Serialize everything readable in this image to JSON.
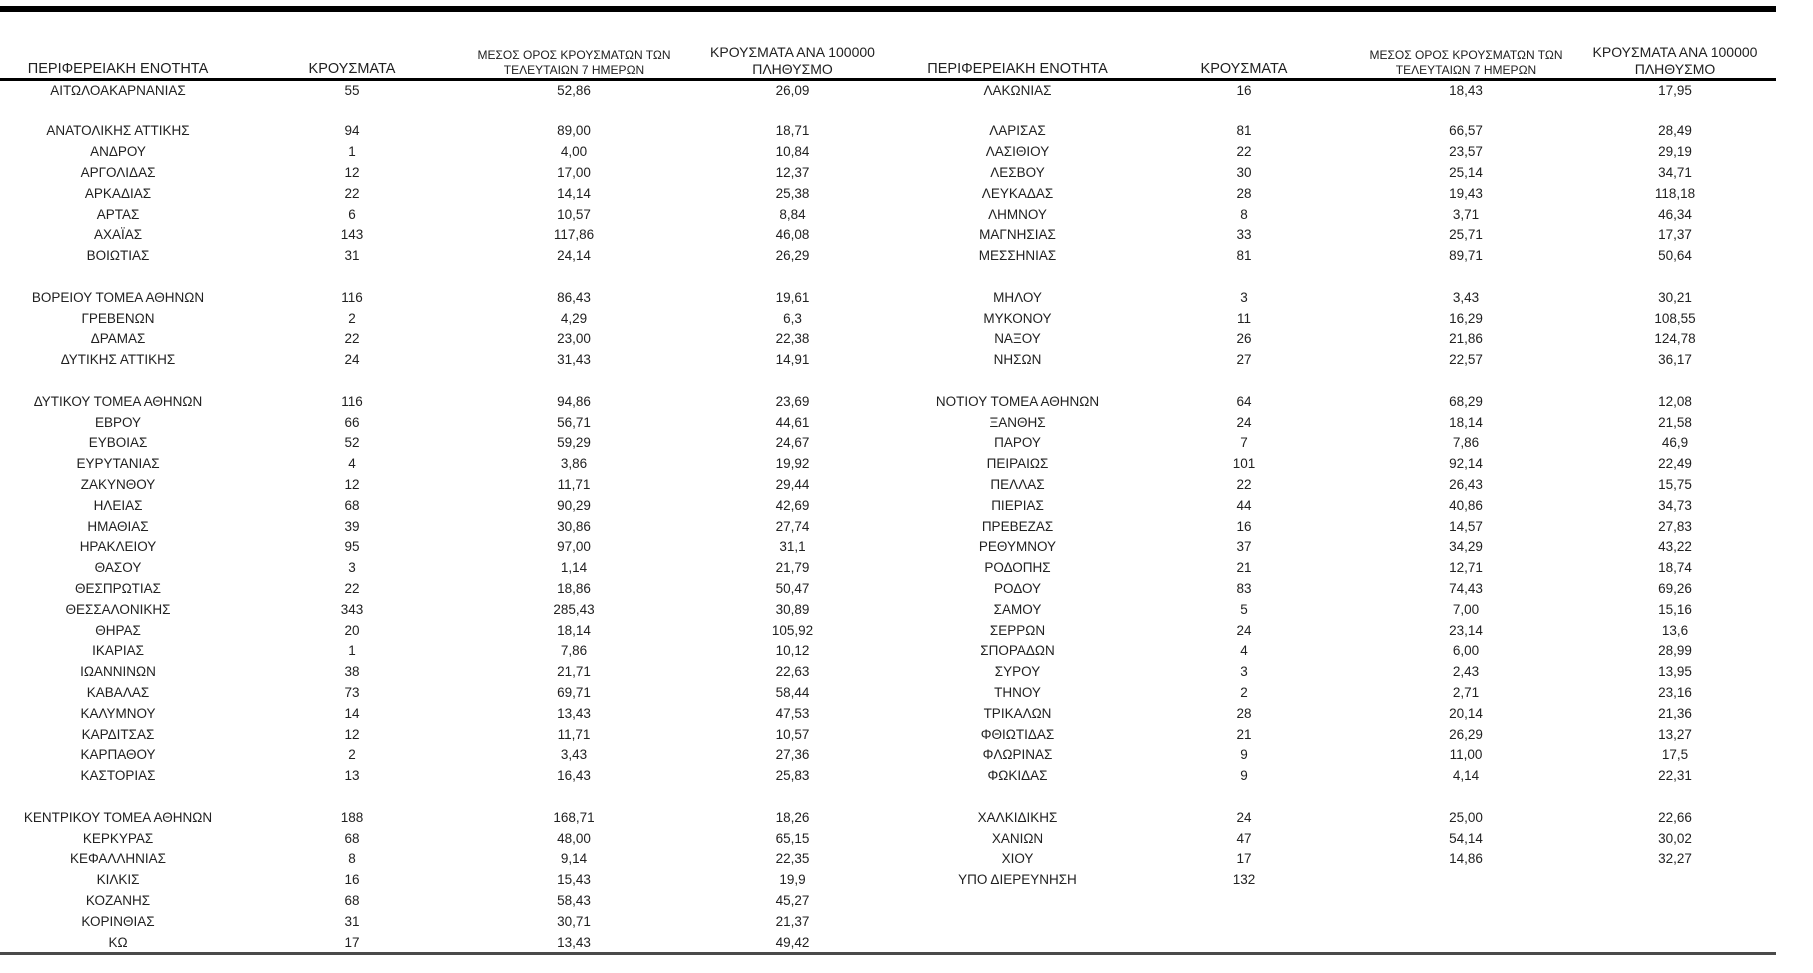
{
  "page": {
    "background": "#ffffff",
    "text_color": "#212121",
    "top_rule_color": "#000000",
    "header_rule_color": "#000000",
    "bottom_rule_color": "#4a4a4a"
  },
  "chart_data": {
    "type": "table",
    "layout": "two side-by-side four-column halves with identical headers; blank rows separate alphabetical groups; header row underlined; thick rule above table and gray rule below",
    "column_headers": {
      "region": "ΠΕΡΙΦΕΡΕΙΑΚΗ ΕΝΟΤΗΤΑ",
      "cases": "ΚΡΟΥΣΜΑΤΑ",
      "avg7_line1": "ΜΕΣΟΣ ΟΡΟΣ ΚΡΟΥΣΜΑΤΩΝ ΤΩΝ",
      "avg7_line2": "ΤΕΛΕΥΤΑΙΩΝ 7 ΗΜΕΡΩΝ",
      "per100k_line1": "ΚΡΟΥΣΜΑΤΑ ΑΝΑ 100000",
      "per100k_line2": "ΠΛΗΘΥΣΜΟ"
    },
    "rows": [
      [
        "ΑΙΤΩΛΟΑΚΑΡΝΑΝΙΑΣ",
        "55",
        "52,86",
        "26,09",
        "ΛΑΚΩΝΙΑΣ",
        "16",
        "18,43",
        "17,95"
      ],
      [
        "",
        "",
        "",
        "",
        "",
        "",
        "",
        ""
      ],
      [
        "ΑΝΑΤΟΛΙΚΗΣ ΑΤΤΙΚΗΣ",
        "94",
        "89,00",
        "18,71",
        "ΛΑΡΙΣΑΣ",
        "81",
        "66,57",
        "28,49"
      ],
      [
        "ΑΝΔΡΟΥ",
        "1",
        "4,00",
        "10,84",
        "ΛΑΣΙΘΙΟΥ",
        "22",
        "23,57",
        "29,19"
      ],
      [
        "ΑΡΓΟΛΙΔΑΣ",
        "12",
        "17,00",
        "12,37",
        "ΛΕΣΒΟΥ",
        "30",
        "25,14",
        "34,71"
      ],
      [
        "ΑΡΚΑΔΙΑΣ",
        "22",
        "14,14",
        "25,38",
        "ΛΕΥΚΑΔΑΣ",
        "28",
        "19,43",
        "118,18"
      ],
      [
        "ΑΡΤΑΣ",
        "6",
        "10,57",
        "8,84",
        "ΛΗΜΝΟΥ",
        "8",
        "3,71",
        "46,34"
      ],
      [
        "ΑΧΑΪΑΣ",
        "143",
        "117,86",
        "46,08",
        "ΜΑΓΝΗΣΙΑΣ",
        "33",
        "25,71",
        "17,37"
      ],
      [
        "ΒΟΙΩΤΙΑΣ",
        "31",
        "24,14",
        "26,29",
        "ΜΕΣΣΗΝΙΑΣ",
        "81",
        "89,71",
        "50,64"
      ],
      [
        "",
        "",
        "",
        "",
        "",
        "",
        "",
        ""
      ],
      [
        "ΒΟΡΕΙΟΥ ΤΟΜΕΑ ΑΘΗΝΩΝ",
        "116",
        "86,43",
        "19,61",
        "ΜΗΛΟΥ",
        "3",
        "3,43",
        "30,21"
      ],
      [
        "ΓΡΕΒΕΝΩΝ",
        "2",
        "4,29",
        "6,3",
        "ΜΥΚΟΝΟΥ",
        "11",
        "16,29",
        "108,55"
      ],
      [
        "ΔΡΑΜΑΣ",
        "22",
        "23,00",
        "22,38",
        "ΝΑΞΟΥ",
        "26",
        "21,86",
        "124,78"
      ],
      [
        "ΔΥΤΙΚΗΣ ΑΤΤΙΚΗΣ",
        "24",
        "31,43",
        "14,91",
        "ΝΗΣΩΝ",
        "27",
        "22,57",
        "36,17"
      ],
      [
        "",
        "",
        "",
        "",
        "",
        "",
        "",
        ""
      ],
      [
        "ΔΥΤΙΚΟΥ ΤΟΜΕΑ ΑΘΗΝΩΝ",
        "116",
        "94,86",
        "23,69",
        "ΝΟΤΙΟΥ ΤΟΜΕΑ ΑΘΗΝΩΝ",
        "64",
        "68,29",
        "12,08"
      ],
      [
        "ΕΒΡΟΥ",
        "66",
        "56,71",
        "44,61",
        "ΞΑΝΘΗΣ",
        "24",
        "18,14",
        "21,58"
      ],
      [
        "ΕΥΒΟΙΑΣ",
        "52",
        "59,29",
        "24,67",
        "ΠΑΡΟΥ",
        "7",
        "7,86",
        "46,9"
      ],
      [
        "ΕΥΡΥΤΑΝΙΑΣ",
        "4",
        "3,86",
        "19,92",
        "ΠΕΙΡΑΙΩΣ",
        "101",
        "92,14",
        "22,49"
      ],
      [
        "ΖΑΚΥΝΘΟΥ",
        "12",
        "11,71",
        "29,44",
        "ΠΕΛΛΑΣ",
        "22",
        "26,43",
        "15,75"
      ],
      [
        "ΗΛΕΙΑΣ",
        "68",
        "90,29",
        "42,69",
        "ΠΙΕΡΙΑΣ",
        "44",
        "40,86",
        "34,73"
      ],
      [
        "ΗΜΑΘΙΑΣ",
        "39",
        "30,86",
        "27,74",
        "ΠΡΕΒΕΖΑΣ",
        "16",
        "14,57",
        "27,83"
      ],
      [
        "ΗΡΑΚΛΕΙΟΥ",
        "95",
        "97,00",
        "31,1",
        "ΡΕΘΥΜΝΟΥ",
        "37",
        "34,29",
        "43,22"
      ],
      [
        "ΘΑΣΟΥ",
        "3",
        "1,14",
        "21,79",
        "ΡΟΔΟΠΗΣ",
        "21",
        "12,71",
        "18,74"
      ],
      [
        "ΘΕΣΠΡΩΤΙΑΣ",
        "22",
        "18,86",
        "50,47",
        "ΡΟΔΟΥ",
        "83",
        "74,43",
        "69,26"
      ],
      [
        "ΘΕΣΣΑΛΟΝΙΚΗΣ",
        "343",
        "285,43",
        "30,89",
        "ΣΑΜΟΥ",
        "5",
        "7,00",
        "15,16"
      ],
      [
        "ΘΗΡΑΣ",
        "20",
        "18,14",
        "105,92",
        "ΣΕΡΡΩΝ",
        "24",
        "23,14",
        "13,6"
      ],
      [
        "ΙΚΑΡΙΑΣ",
        "1",
        "7,86",
        "10,12",
        "ΣΠΟΡΑΔΩΝ",
        "4",
        "6,00",
        "28,99"
      ],
      [
        "ΙΩΑΝΝΙΝΩΝ",
        "38",
        "21,71",
        "22,63",
        "ΣΥΡΟΥ",
        "3",
        "2,43",
        "13,95"
      ],
      [
        "ΚΑΒΑΛΑΣ",
        "73",
        "69,71",
        "58,44",
        "ΤΗΝΟΥ",
        "2",
        "2,71",
        "23,16"
      ],
      [
        "ΚΑΛΥΜΝΟΥ",
        "14",
        "13,43",
        "47,53",
        "ΤΡΙΚΑΛΩΝ",
        "28",
        "20,14",
        "21,36"
      ],
      [
        "ΚΑΡΔΙΤΣΑΣ",
        "12",
        "11,71",
        "10,57",
        "ΦΘΙΩΤΙΔΑΣ",
        "21",
        "26,29",
        "13,27"
      ],
      [
        "ΚΑΡΠΑΘΟΥ",
        "2",
        "3,43",
        "27,36",
        "ΦΛΩΡΙΝΑΣ",
        "9",
        "11,00",
        "17,5"
      ],
      [
        "ΚΑΣΤΟΡΙΑΣ",
        "13",
        "16,43",
        "25,83",
        "ΦΩΚΙΔΑΣ",
        "9",
        "4,14",
        "22,31"
      ],
      [
        "",
        "",
        "",
        "",
        "",
        "",
        "",
        ""
      ],
      [
        "ΚΕΝΤΡΙΚΟΥ ΤΟΜΕΑ ΑΘΗΝΩΝ",
        "188",
        "168,71",
        "18,26",
        "ΧΑΛΚΙΔΙΚΗΣ",
        "24",
        "25,00",
        "22,66"
      ],
      [
        "ΚΕΡΚΥΡΑΣ",
        "68",
        "48,00",
        "65,15",
        "ΧΑΝΙΩΝ",
        "47",
        "54,14",
        "30,02"
      ],
      [
        "ΚΕΦΑΛΛΗΝΙΑΣ",
        "8",
        "9,14",
        "22,35",
        "ΧΙΟΥ",
        "17",
        "14,86",
        "32,27"
      ],
      [
        "ΚΙΛΚΙΣ",
        "16",
        "15,43",
        "19,9",
        "ΥΠΟ ΔΙΕΡΕΥΝΗΣΗ",
        "132",
        "",
        ""
      ],
      [
        "ΚΟΖΑΝΗΣ",
        "68",
        "58,43",
        "45,27",
        "",
        "",
        "",
        ""
      ],
      [
        "ΚΟΡΙΝΘΙΑΣ",
        "31",
        "30,71",
        "21,37",
        "",
        "",
        "",
        ""
      ],
      [
        "ΚΩ",
        "17",
        "13,43",
        "49,42",
        "",
        "",
        "",
        ""
      ]
    ]
  }
}
